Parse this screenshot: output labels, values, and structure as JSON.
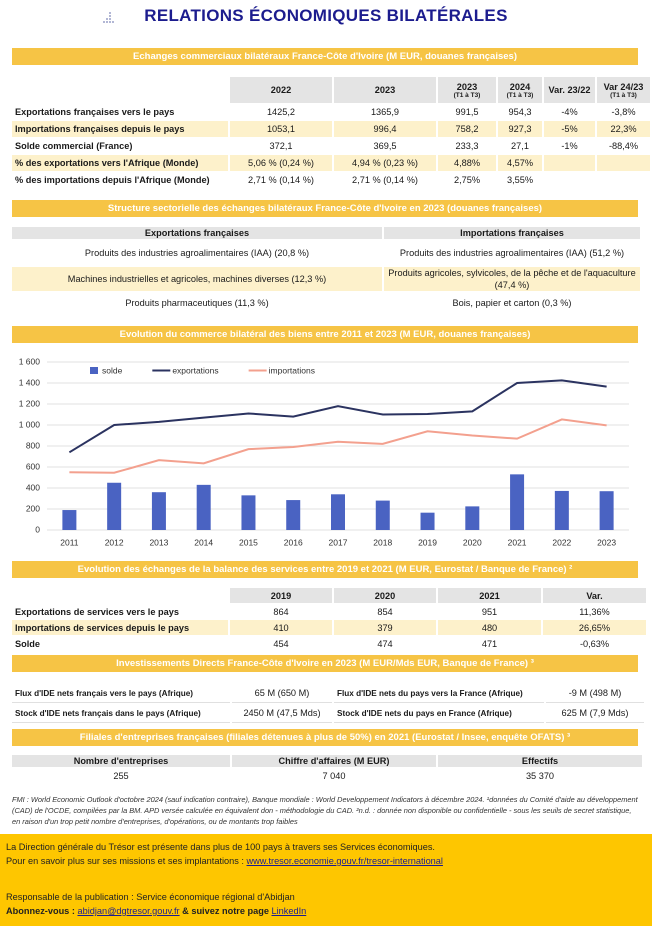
{
  "header": {
    "title": "RELATIONS ÉCONOMIQUES BILATÉRALES"
  },
  "trade": {
    "title": "Echanges commerciaux bilatéraux France-Côte d'Ivoire (M EUR, douanes françaises)",
    "columns": [
      {
        "label": "2022"
      },
      {
        "label": "2023"
      },
      {
        "label": "2023",
        "sub": "(T1 à T3)"
      },
      {
        "label": "2024",
        "sub": "(T1 à T3)"
      },
      {
        "label": "Var. 23/22"
      },
      {
        "label": "Var 24/23",
        "sub": "(T1 à T3)"
      }
    ],
    "rows": [
      [
        "Exportations françaises vers le pays",
        "1425,2",
        "1365,9",
        "991,5",
        "954,3",
        "-4%",
        "-3,8%"
      ],
      [
        "Importations françaises depuis le pays",
        "1053,1",
        "996,4",
        "758,2",
        "927,3",
        "-5%",
        "22,3%"
      ],
      [
        "Solde commercial (France)",
        "372,1",
        "369,5",
        "233,3",
        "27,1",
        "-1%",
        "-88,4%"
      ],
      [
        "% des exportations vers l'Afrique (Monde)",
        "5,06 % (0,24 %)",
        "4,94 % (0,23 %)",
        "4,88%",
        "4,57%"
      ],
      [
        "% des importations depuis l'Afrique (Monde)",
        "2,71 % (0,14 %)",
        "2,71 % (0,14 %)",
        "2,75%",
        "3,55%"
      ]
    ]
  },
  "sectors": {
    "title": "Structure sectorielle des échanges bilatéraux France-Côte d'Ivoire en 2023 (douanes françaises)",
    "columns": [
      "Exportations françaises",
      "Importations françaises"
    ],
    "rows": [
      [
        "Produits des industries agroalimentaires (IAA) (20,8 %)",
        "Produits des industries agroalimentaires (IAA) (51,2 %)"
      ],
      [
        "Machines industrielles et agricoles, machines diverses (12,3 %)",
        "Produits agricoles, sylvicoles, de la pêche et de l'aquaculture (47,4 %)"
      ],
      [
        "Produits pharmaceutiques (11,3 %)",
        "Bois, papier et carton (0,3 %)"
      ]
    ]
  },
  "chart": {
    "type": "bar_line",
    "title": "Evolution du commerce bilatéral des biens entre 2011 et 2023 (M EUR, douanes françaises)",
    "categories": [
      "2011",
      "2012",
      "2013",
      "2014",
      "2015",
      "2016",
      "2017",
      "2018",
      "2019",
      "2020",
      "2021",
      "2022",
      "2023"
    ],
    "series": [
      {
        "name": "solde",
        "type": "bar",
        "color": "#4a63c2",
        "values": [
          190,
          450,
          360,
          430,
          330,
          285,
          340,
          280,
          165,
          225,
          530,
          372.1,
          369.5
        ]
      },
      {
        "name": "exportations",
        "type": "line",
        "color": "#2b3360",
        "values": [
          740,
          1000,
          1030,
          1070,
          1110,
          1080,
          1180,
          1100,
          1105,
          1130,
          1400,
          1425.2,
          1365.9
        ]
      },
      {
        "name": "importations",
        "type": "line",
        "color": "#f3a08e",
        "values": [
          550,
          545,
          665,
          635,
          770,
          790,
          840,
          820,
          940,
          900,
          870,
          1053.1,
          996.4
        ]
      }
    ],
    "ylim": [
      0,
      1600
    ],
    "yticks": [
      0,
      200,
      400,
      600,
      800,
      {
        "value": 1000,
        "label": "1 000"
      },
      {
        "value": 1200,
        "label": "1 200"
      },
      {
        "value": 1400,
        "label": "1 400"
      },
      {
        "value": 1600,
        "label": "1 600"
      }
    ],
    "grid": true
  },
  "services": {
    "title": "Evolution des échanges de la balance des services entre 2019 et 2021 (M EUR, Eurostat / Banque de France) ²",
    "columns": [
      "2019",
      "2020",
      "2021",
      "Var."
    ],
    "rows": [
      [
        "Exportations de services vers le pays",
        "864",
        "854",
        "951",
        "11,36%"
      ],
      [
        "Importations de services depuis le pays",
        "410",
        "379",
        "480",
        "26,65%"
      ],
      [
        "Solde",
        "454",
        "474",
        "471",
        "-0,63%"
      ]
    ]
  },
  "investment": {
    "title": "Investissements Directs France-Côte d'Ivoire en 2023 (M EUR/Mds EUR, Banque de France) ³",
    "rows": [
      [
        "Flux d'IDE nets français vers le pays (Afrique)",
        "65 M (650 M)",
        "Flux d'IDE nets du pays vers la France (Afrique)",
        "-9 M (498 M)"
      ],
      [
        "Stock d'IDE nets français dans le pays (Afrique)",
        "2450 M (47,5 Mds)",
        "Stock d'IDE nets du pays  en France (Afrique)",
        "625 M (7,9 Mds)"
      ]
    ]
  },
  "subsidiaries": {
    "title": "Filiales d'entreprises françaises (filiales détenues à plus de 50%) en 2021 (Eurostat / Insee, enquête OFATS) ³",
    "columns": [
      "Nombre d'entreprises",
      "Chiffre d'affaires (M EUR)",
      "Effectifs"
    ],
    "values": [
      "255",
      "7 040",
      "35 370"
    ]
  },
  "footnote": "FMI : World Economic Outlook d'octobre 2024 (sauf indication contraire), Banque mondiale : World Developpement Indicators à décembre 2024. ¹données du Comité d'aide au développement (CAD) de l'OCDE, compilées par la BM. APD versée calculée en équivalent don - méthodologie du CAD. ²n.d. : donnée non disponible ou confidentielle - sous les seuils de secret statistique, en raison d'un trop petit nombre d'entreprises, d'opérations, ou de montants trop faibles",
  "footer": {
    "presence": "La Direction générale du Trésor est présente dans plus de 100 pays à travers ses Services économiques.",
    "more": {
      "text": "Pour en savoir plus sur ses missions et ses implantations : ",
      "link": "www.tresor.economie.gouv.fr/tresor-international"
    },
    "publisher": "Responsable de la publication : Service économique régional d'Abidjan",
    "subscribe": {
      "label": "Abonnez-vous : ",
      "email": "abidjan@dgtresor.gouv.fr",
      "follow": " & suivez notre page ",
      "linkedin": "LinkedIn"
    }
  }
}
